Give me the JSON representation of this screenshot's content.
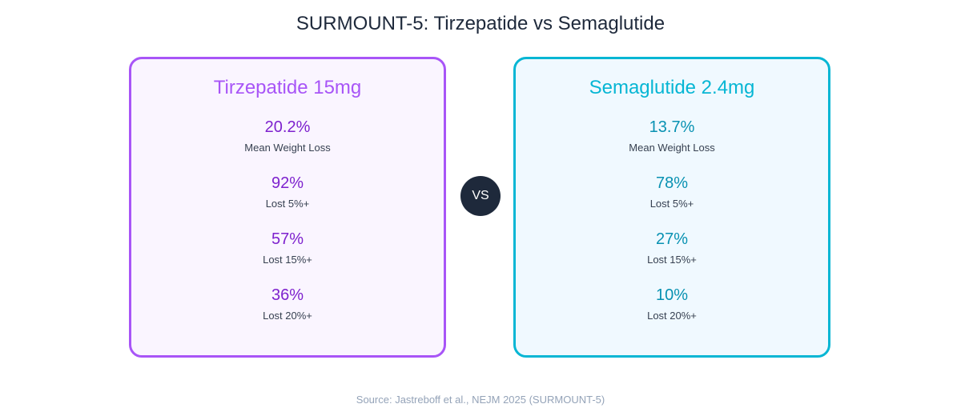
{
  "title": "SURMOUNT-5: Tirzepatide vs Semaglutide",
  "vs_label": "VS",
  "source": "Source: Jastreboff et al., NEJM 2025 (SURMOUNT-5)",
  "colors": {
    "tirzepatide_accent": "#a855f7",
    "tirzepatide_value": "#7e22ce",
    "tirzepatide_bg": "#faf5ff",
    "semaglutide_accent": "#06b6d4",
    "semaglutide_value": "#0891b2",
    "semaglutide_bg": "#f0f9ff",
    "vs_badge": "#1e293b"
  },
  "cards": [
    {
      "name": "Tirzepatide 15mg",
      "stats": [
        {
          "value": "20.2%",
          "label": "Mean Weight Loss"
        },
        {
          "value": "92%",
          "label": "Lost 5%+"
        },
        {
          "value": "57%",
          "label": "Lost 15%+"
        },
        {
          "value": "36%",
          "label": "Lost 20%+"
        }
      ]
    },
    {
      "name": "Semaglutide 2.4mg",
      "stats": [
        {
          "value": "13.7%",
          "label": "Mean Weight Loss"
        },
        {
          "value": "78%",
          "label": "Lost 5%+"
        },
        {
          "value": "27%",
          "label": "Lost 15%+"
        },
        {
          "value": "10%",
          "label": "Lost 20%+"
        }
      ]
    }
  ]
}
